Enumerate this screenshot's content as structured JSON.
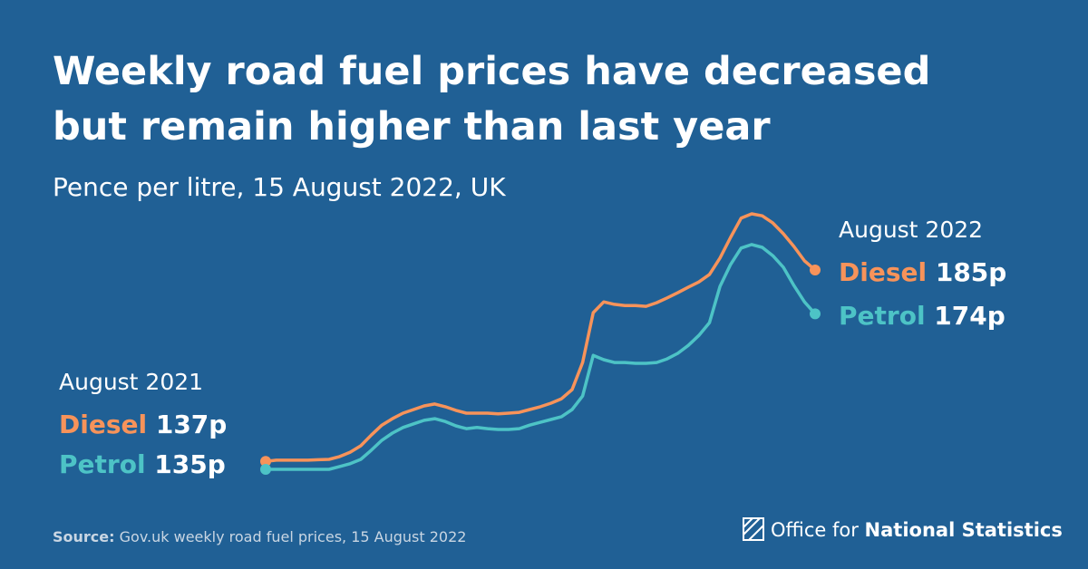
{
  "chart_data": {
    "type": "line",
    "title_lines": [
      "Weekly road fuel prices have decreased",
      "but remain higher than last year"
    ],
    "subtitle": "Pence per litre, 15 August 2022, UK",
    "start_period": "August 2021",
    "end_period": "August 2022",
    "series": [
      {
        "name": "Diesel",
        "color": "#f7935a",
        "start_label": "137p",
        "end_label": "185p",
        "values": [
          137,
          137.3,
          137.3,
          137.3,
          137.3,
          137.4,
          137.5,
          138.2,
          139.3,
          140.9,
          143.6,
          146.1,
          147.7,
          149.1,
          150,
          150.9,
          151.4,
          150.7,
          149.8,
          149.1,
          149.1,
          149.1,
          148.9,
          149.1,
          149.3,
          150,
          150.7,
          151.6,
          152.7,
          155,
          161.8,
          174.3,
          177,
          176.4,
          176.1,
          176.1,
          175.9,
          176.8,
          178,
          179.3,
          180.7,
          182,
          183.9,
          188,
          193.2,
          198,
          199.1,
          198.6,
          196.8,
          194.1,
          190.9,
          187.3,
          185
        ]
      },
      {
        "name": "Petrol",
        "color": "#4dc3c6",
        "start_label": "135p",
        "end_label": "174p",
        "values": [
          135,
          135,
          135,
          135,
          135,
          135,
          135,
          135.7,
          136.4,
          137.5,
          139.8,
          142.3,
          144.1,
          145.5,
          146.4,
          147.3,
          147.7,
          147,
          145.9,
          145.2,
          145.5,
          145.2,
          145,
          145,
          145.2,
          146.1,
          146.8,
          147.5,
          148.2,
          150,
          153.4,
          163.6,
          162.5,
          161.8,
          161.8,
          161.6,
          161.6,
          161.8,
          162.7,
          164.1,
          166.1,
          168.6,
          171.8,
          180.9,
          186.4,
          190.5,
          191.4,
          190.7,
          188.6,
          185.7,
          181.1,
          177,
          174
        ]
      }
    ]
  },
  "footer": {
    "source_label": "Source:",
    "source": "Gov.uk weekly road fuel prices, 15 August 2022",
    "logo_prefix": "Office for",
    "logo_name": "National Statistics"
  }
}
